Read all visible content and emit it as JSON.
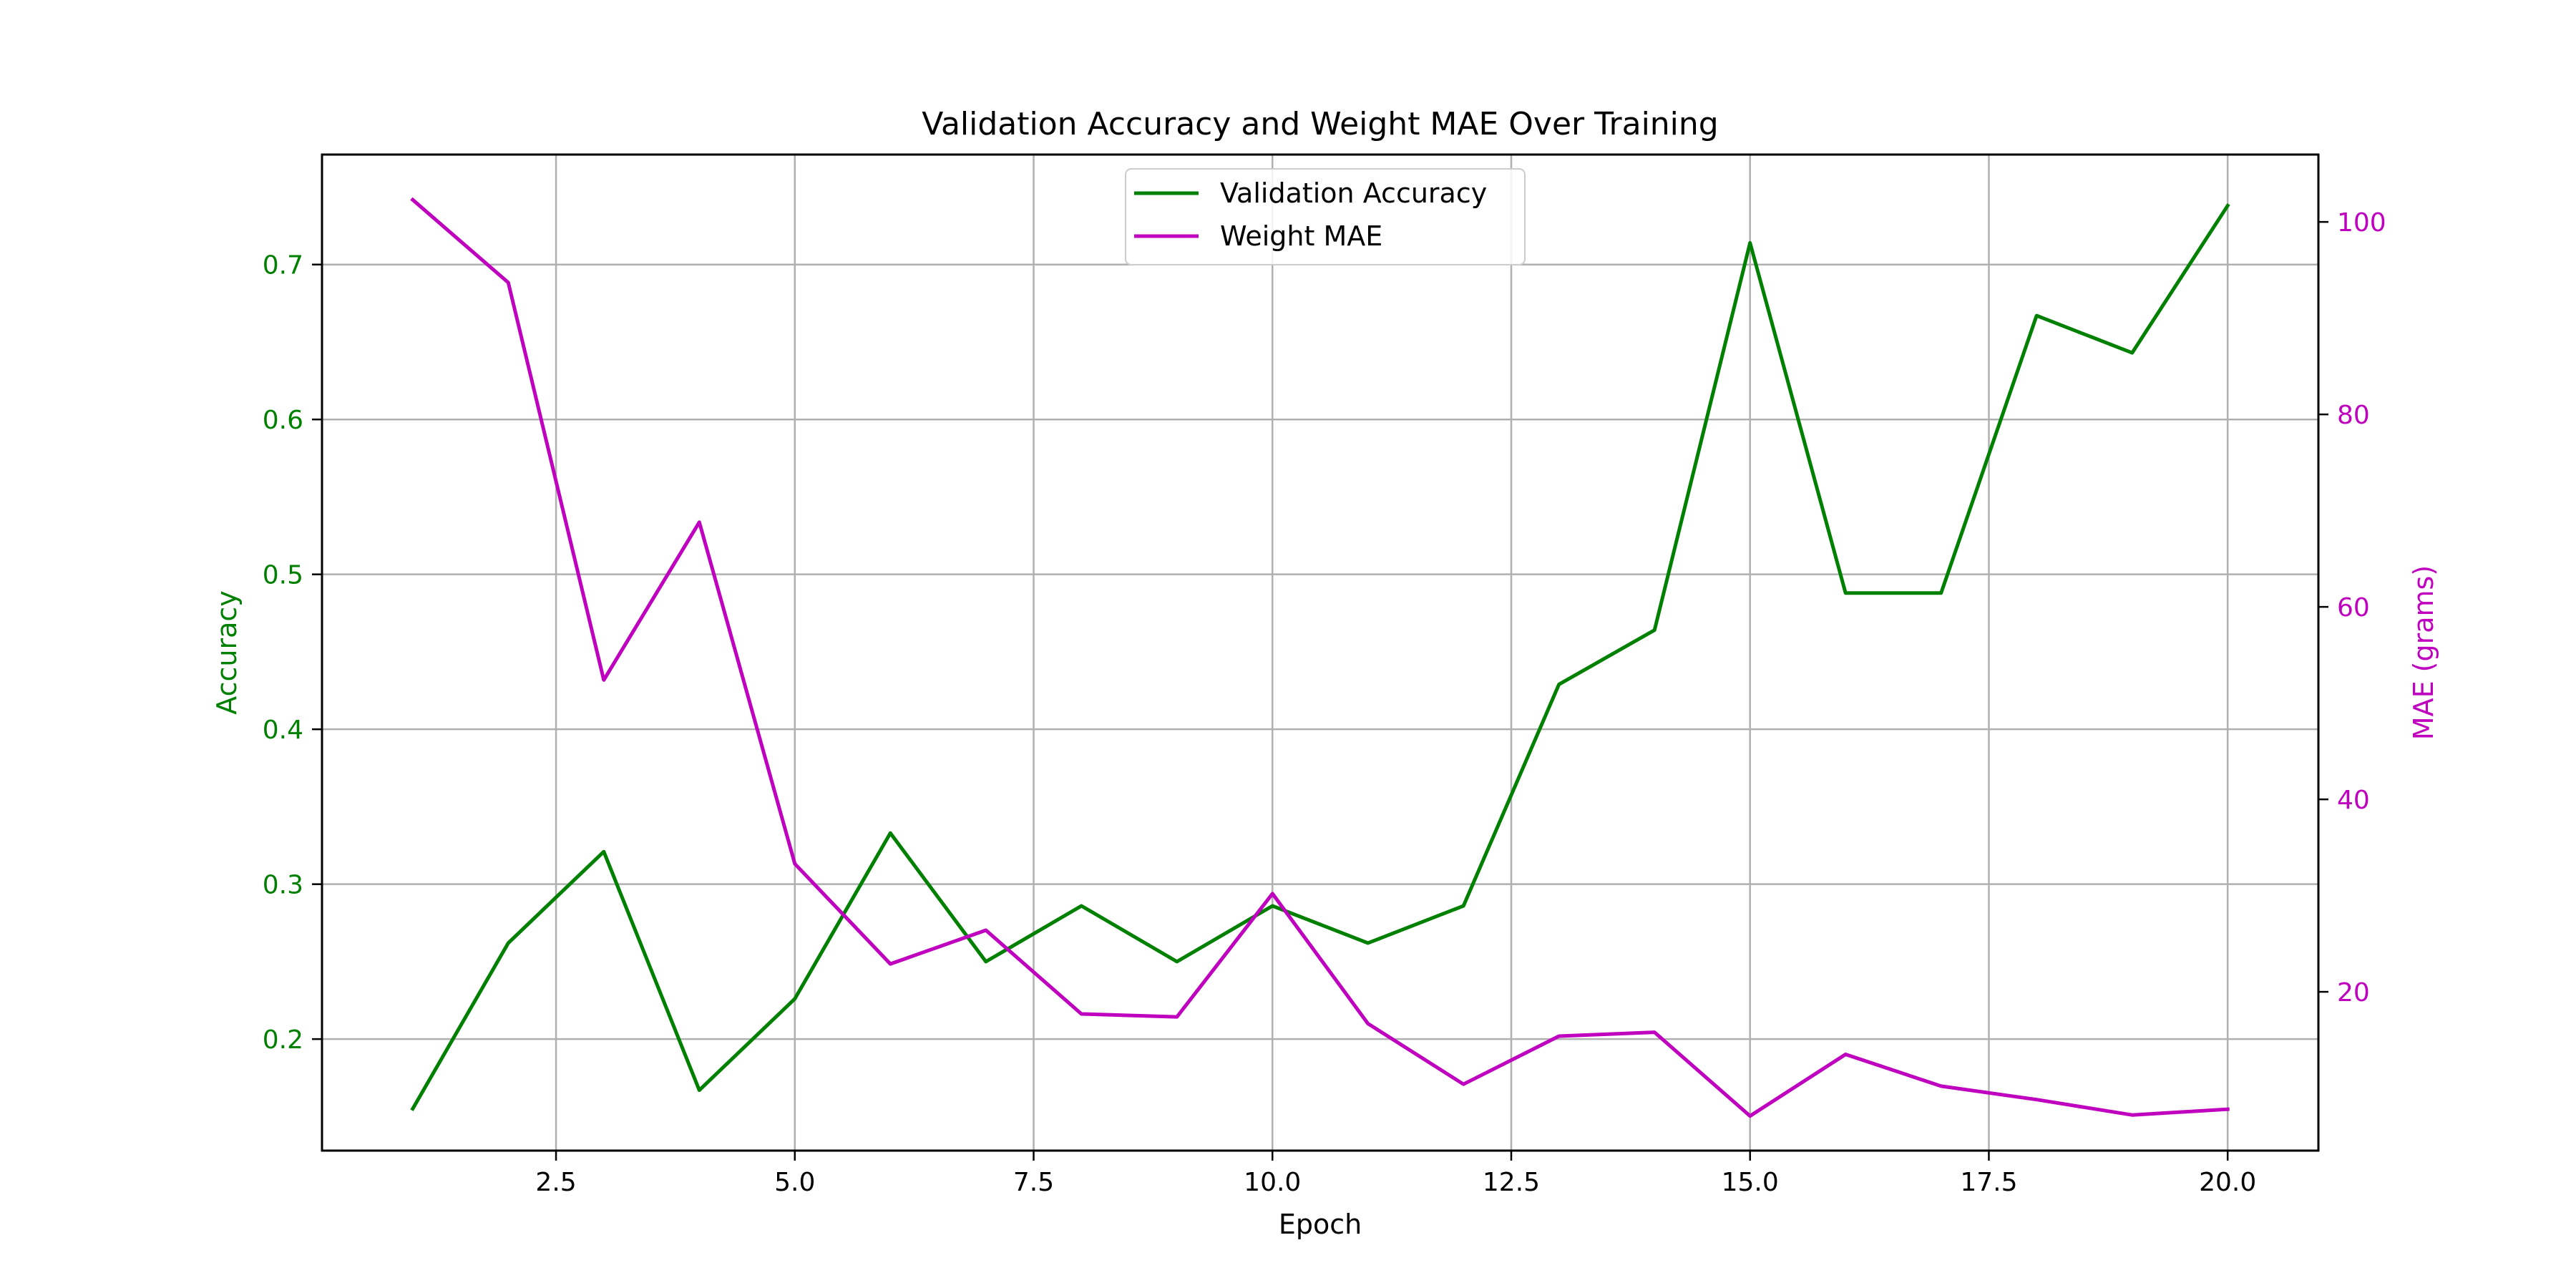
{
  "chart_data": {
    "type": "line",
    "title": "Validation Accuracy and Weight MAE Over Training",
    "xlabel": "Epoch",
    "ylabel_left": "Accuracy",
    "ylabel_right": "MAE (grams)",
    "x": [
      1,
      2,
      3,
      4,
      5,
      6,
      7,
      8,
      9,
      10,
      11,
      12,
      13,
      14,
      15,
      16,
      17,
      18,
      19,
      20
    ],
    "xlim": [
      0.05,
      20.95
    ],
    "ylim_left": [
      0.128,
      0.771
    ],
    "ylim_right": [
      3.5,
      107
    ],
    "x_ticks": [
      2.5,
      5.0,
      7.5,
      10.0,
      12.5,
      15.0,
      17.5,
      20.0
    ],
    "x_tick_labels": [
      "2.5",
      "5.0",
      "7.5",
      "10.0",
      "12.5",
      "15.0",
      "17.5",
      "20.0"
    ],
    "y_left_ticks": [
      0.2,
      0.3,
      0.4,
      0.5,
      0.6,
      0.7
    ],
    "y_left_tick_labels": [
      "0.2",
      "0.3",
      "0.4",
      "0.5",
      "0.6",
      "0.7"
    ],
    "y_right_ticks": [
      20,
      40,
      60,
      80,
      100
    ],
    "y_right_tick_labels": [
      "20",
      "40",
      "60",
      "80",
      "100"
    ],
    "grid": true,
    "legend_position": "top-center",
    "series": [
      {
        "name": "Validation Accuracy",
        "axis": "left",
        "color": "#008000",
        "values": [
          0.155,
          0.262,
          0.321,
          0.167,
          0.226,
          0.333,
          0.25,
          0.286,
          0.25,
          0.286,
          0.262,
          0.286,
          0.429,
          0.464,
          0.714,
          0.488,
          0.488,
          0.667,
          0.643,
          0.738
        ]
      },
      {
        "name": "Weight MAE",
        "axis": "right",
        "color": "#bf00bf",
        "values": [
          102.3,
          93.7,
          52.4,
          68.8,
          33.3,
          22.9,
          26.4,
          17.7,
          17.4,
          30.2,
          16.7,
          10.4,
          15.4,
          15.8,
          7.1,
          13.5,
          10.2,
          8.8,
          7.2,
          7.8
        ]
      }
    ]
  }
}
